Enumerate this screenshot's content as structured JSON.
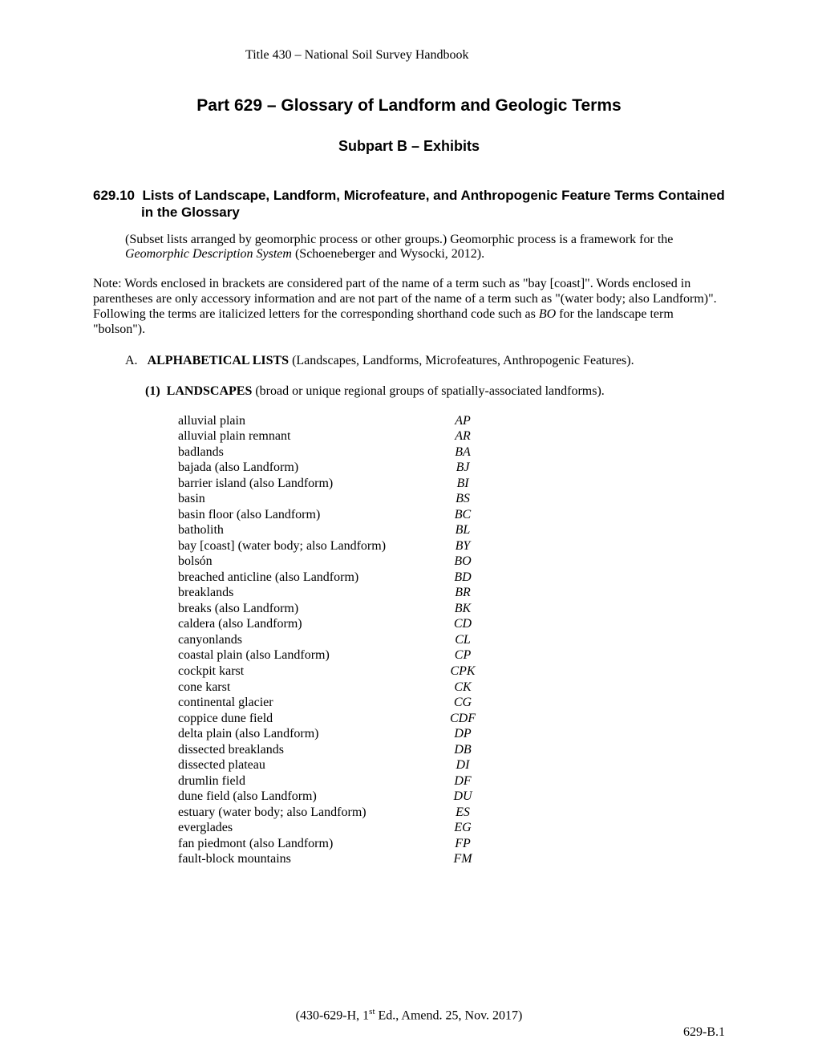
{
  "header": {
    "title": "Title 430 – National Soil Survey Handbook"
  },
  "main_title": "Part 629 – Glossary of Landform and Geologic Terms",
  "subtitle": "Subpart B – Exhibits",
  "section_heading_number": "629.10",
  "section_heading_text": "Lists of Landscape, Landform, Microfeature, and Anthropogenic Feature Terms Contained in the Glossary",
  "intro_text_1": "(Subset lists arranged by geomorphic process or other groups.)  Geomorphic process is a framework for the ",
  "intro_text_italic": "Geomorphic Description System",
  "intro_text_2": " (Schoeneberger and Wysocki, 2012).",
  "note_text_1": "Note:  Words enclosed in brackets are considered part of the name of a term such as \"bay [coast]\".  Words enclosed in parentheses are only accessory information and are not part of the name of a term such as \"(water body; also Landform)\".  Following the terms are italicized letters for the corresponding shorthand code such as ",
  "note_text_italic": "BO",
  "note_text_2": " for the landscape term \"bolson\").",
  "list_a_marker": "A.",
  "list_a_bold": "ALPHABETICAL LISTS",
  "list_a_rest": "   (Landscapes, Landforms, Microfeatures, Anthropogenic Features).",
  "list_1_marker": "(1)",
  "list_1_bold": "LANDSCAPES",
  "list_1_rest": "  (broad or unique regional groups of spatially-associated landforms).",
  "landscapes": [
    {
      "name": "alluvial plain",
      "code": "AP"
    },
    {
      "name": "alluvial plain remnant",
      "code": "AR"
    },
    {
      "name": "badlands",
      "code": "BA"
    },
    {
      "name": "bajada  (also Landform)",
      "code": "BJ"
    },
    {
      "name": "barrier island  (also Landform)",
      "code": "BI"
    },
    {
      "name": "basin",
      "code": "BS"
    },
    {
      "name": "basin floor  (also Landform)",
      "code": "BC"
    },
    {
      "name": "batholith",
      "code": "BL"
    },
    {
      "name": "bay [coast]  (water body; also Landform)",
      "code": "BY"
    },
    {
      "name": "bolsón",
      "code": "BO"
    },
    {
      "name": "breached anticline  (also Landform)",
      "code": "BD"
    },
    {
      "name": "breaklands",
      "code": "BR"
    },
    {
      "name": "breaks  (also Landform)",
      "code": "BK"
    },
    {
      "name": "caldera  (also Landform)",
      "code": "CD"
    },
    {
      "name": "canyonlands",
      "code": "CL"
    },
    {
      "name": "coastal plain  (also Landform)",
      "code": "CP"
    },
    {
      "name": "cockpit karst",
      "code": "CPK"
    },
    {
      "name": "cone karst",
      "code": "CK"
    },
    {
      "name": "continental glacier",
      "code": "CG"
    },
    {
      "name": "coppice dune field",
      "code": "CDF"
    },
    {
      "name": "delta plain  (also Landform)",
      "code": "DP"
    },
    {
      "name": "dissected breaklands",
      "code": "DB"
    },
    {
      "name": "dissected plateau",
      "code": "DI"
    },
    {
      "name": "drumlin field",
      "code": "DF"
    },
    {
      "name": "dune field  (also Landform)",
      "code": "DU"
    },
    {
      "name": "estuary  (water body; also Landform)",
      "code": "ES"
    },
    {
      "name": "everglades",
      "code": "EG"
    },
    {
      "name": "fan piedmont  (also Landform)",
      "code": "FP"
    },
    {
      "name": "fault-block mountains",
      "code": "FM"
    }
  ],
  "footer_text_1": "(430-629-H, 1",
  "footer_super": "st",
  "footer_text_2": " Ed., Amend. 25, Nov. 2017)",
  "page_number": "629-B.1"
}
